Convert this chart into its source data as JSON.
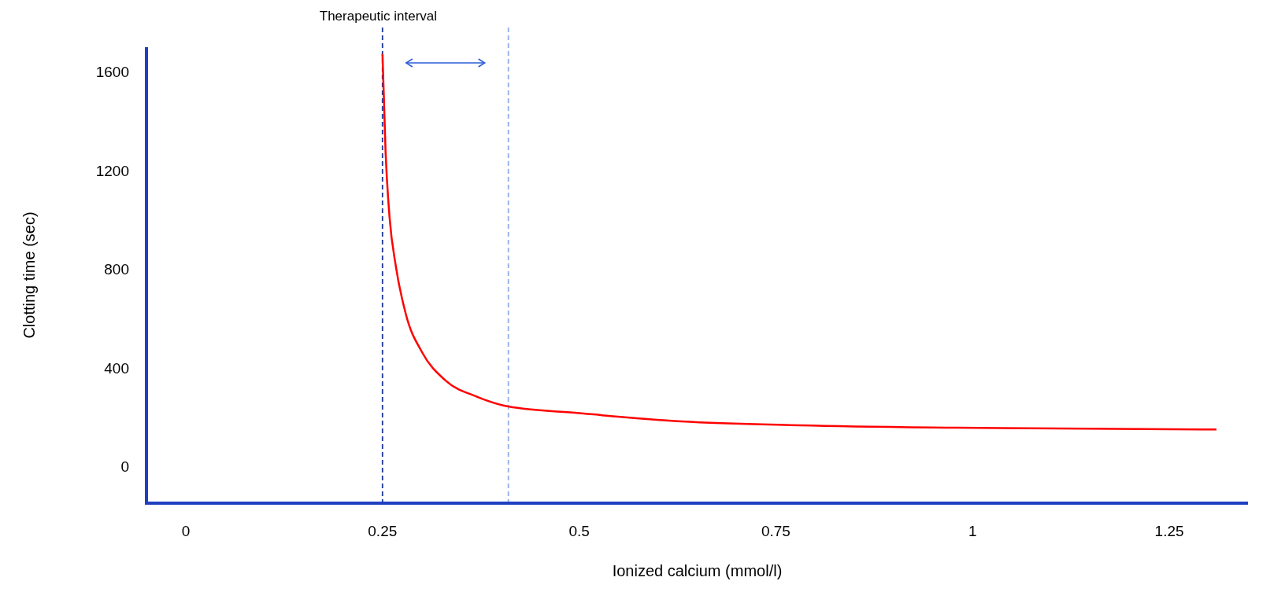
{
  "chart_data": {
    "type": "line",
    "xlabel": "Ionized calcium (mmol/l)",
    "ylabel": "Clotting time (sec)",
    "annotations": [
      "Therapeutic interval"
    ],
    "x": [
      0.25,
      0.254,
      0.259,
      0.267,
      0.28,
      0.3,
      0.33,
      0.37,
      0.41,
      0.5,
      0.63,
      0.78,
      0.98,
      1.31
    ],
    "series": [
      {
        "color": "#ff0000",
        "values": [
          1673,
          1270,
          1010,
          811,
          613,
          464,
          348,
          282,
          242,
          215,
          182,
          166,
          156,
          149
        ]
      }
    ],
    "xlim": [
      -0.05,
      1.35
    ],
    "xticks": [
      0,
      0.25,
      0.5,
      0.75,
      1,
      1.25
    ],
    "ylim": [
      -150,
      1700
    ],
    "yticks": [
      0,
      400,
      800,
      1200,
      1600
    ],
    "ref_lines": [
      {
        "axis": "x",
        "value": 0.25,
        "color": "#1a3a9a",
        "line_style": "dashed"
      },
      {
        "axis": "x",
        "value": 0.41,
        "color": "#8fb0e8",
        "line_style": "dashed"
      }
    ],
    "grid": false,
    "marker": "none",
    "line_style": "solid"
  }
}
